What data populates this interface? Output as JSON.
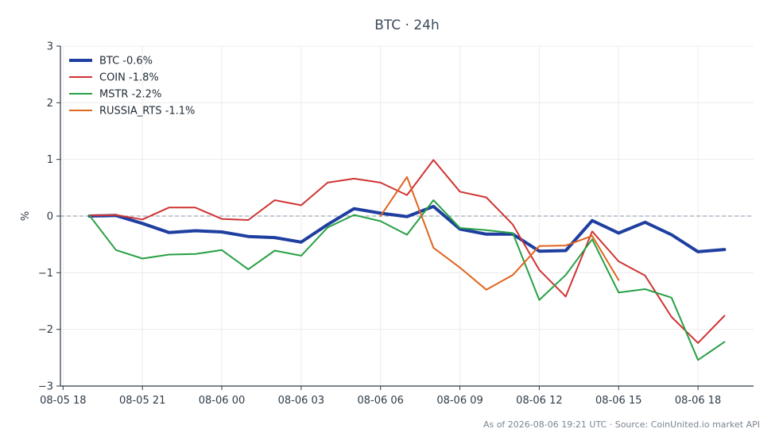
{
  "chart_data": {
    "type": "line",
    "title": "BTC · 24h",
    "ylabel": "%",
    "xlabel": "",
    "ylim": [
      -3,
      3
    ],
    "yticks": [
      -3,
      -2,
      -1,
      0,
      1,
      2,
      3
    ],
    "ytick_labels": [
      "−3",
      "−2",
      "−1",
      "0",
      "1",
      "2",
      "3"
    ],
    "xlim": [
      -0.1,
      26.1
    ],
    "xtick_positions": [
      0,
      3,
      6,
      9,
      12,
      15,
      18,
      21,
      24
    ],
    "xtick_labels": [
      "08-05 18",
      "08-05 21",
      "08-06 00",
      "08-06 03",
      "08-06 06",
      "08-06 09",
      "08-06 12",
      "08-06 15",
      "08-06 18"
    ],
    "grid": true,
    "zero_line": true,
    "legend_position": "top-left",
    "series": [
      {
        "name": "BTC -0.6%",
        "color": "#1f3fa0",
        "width": 4,
        "points": [
          [
            1,
            0.0
          ],
          [
            2,
            0.01
          ],
          [
            3,
            -0.13
          ],
          [
            4,
            -0.29
          ],
          [
            5,
            -0.26
          ],
          [
            6,
            -0.28
          ],
          [
            7,
            -0.36
          ],
          [
            8,
            -0.38
          ],
          [
            9,
            -0.46
          ],
          [
            10,
            -0.15
          ],
          [
            11,
            0.13
          ],
          [
            12,
            0.05
          ],
          [
            13,
            -0.01
          ],
          [
            14,
            0.17
          ],
          [
            15,
            -0.23
          ],
          [
            16,
            -0.32
          ],
          [
            17,
            -0.32
          ],
          [
            18,
            -0.62
          ],
          [
            19,
            -0.61
          ],
          [
            20,
            -0.08
          ],
          [
            21,
            -0.3
          ],
          [
            22,
            -0.11
          ],
          [
            23,
            -0.33
          ],
          [
            24,
            -0.63
          ],
          [
            25,
            -0.59
          ]
        ]
      },
      {
        "name": "COIN -1.8%",
        "color": "#d03434",
        "width": 2,
        "points": [
          [
            1,
            0.01
          ],
          [
            2,
            0.02
          ],
          [
            3,
            -0.06
          ],
          [
            4,
            0.15
          ],
          [
            5,
            0.15
          ],
          [
            6,
            -0.05
          ],
          [
            7,
            -0.07
          ],
          [
            8,
            0.28
          ],
          [
            9,
            0.19
          ],
          [
            10,
            0.59
          ],
          [
            11,
            0.66
          ],
          [
            12,
            0.59
          ],
          [
            13,
            0.37
          ],
          [
            14,
            0.99
          ],
          [
            15,
            0.43
          ],
          [
            16,
            0.33
          ],
          [
            17,
            -0.15
          ],
          [
            18,
            -0.95
          ],
          [
            19,
            -1.42
          ],
          [
            20,
            -0.27
          ],
          [
            21,
            -0.8
          ],
          [
            22,
            -1.05
          ],
          [
            23,
            -1.78
          ],
          [
            24,
            -2.24
          ],
          [
            25,
            -1.76
          ]
        ]
      },
      {
        "name": "MSTR -2.2%",
        "color": "#28a046",
        "width": 2,
        "points": [
          [
            1,
            0.01
          ],
          [
            2,
            -0.6
          ],
          [
            3,
            -0.75
          ],
          [
            4,
            -0.68
          ],
          [
            5,
            -0.67
          ],
          [
            6,
            -0.6
          ],
          [
            7,
            -0.94
          ],
          [
            8,
            -0.61
          ],
          [
            9,
            -0.7
          ],
          [
            10,
            -0.2
          ],
          [
            11,
            0.02
          ],
          [
            12,
            -0.09
          ],
          [
            13,
            -0.33
          ],
          [
            14,
            0.28
          ],
          [
            15,
            -0.21
          ],
          [
            16,
            -0.25
          ],
          [
            17,
            -0.3
          ],
          [
            18,
            -1.48
          ],
          [
            19,
            -1.04
          ],
          [
            20,
            -0.41
          ],
          [
            21,
            -1.35
          ],
          [
            22,
            -1.29
          ],
          [
            23,
            -1.44
          ],
          [
            24,
            -2.54
          ],
          [
            25,
            -2.22
          ]
        ]
      },
      {
        "name": "RUSSIA_RTS -1.1%",
        "color": "#e0651e",
        "width": 2,
        "points": [
          [
            12,
            0.0
          ],
          [
            13,
            0.69
          ],
          [
            14,
            -0.56
          ],
          [
            15,
            -0.91
          ],
          [
            16,
            -1.3
          ],
          [
            17,
            -1.04
          ],
          [
            18,
            -0.53
          ],
          [
            19,
            -0.52
          ],
          [
            20,
            -0.35
          ],
          [
            21,
            -1.13
          ]
        ]
      }
    ]
  },
  "footer": {
    "text": "As of 2026-08-06 19:21 UTC · Source: CoinUnited.io market API"
  }
}
